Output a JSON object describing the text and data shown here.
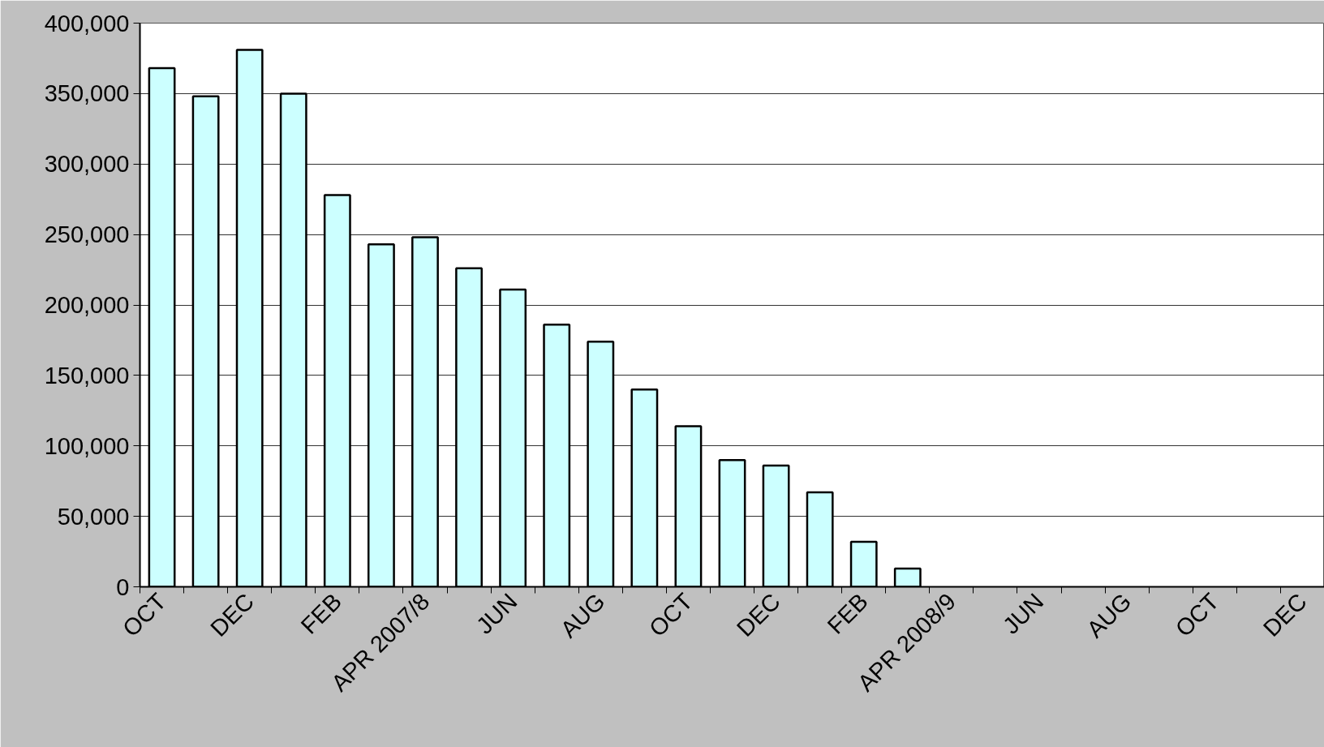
{
  "chart_data": {
    "type": "bar",
    "categories": [
      "OCT",
      null,
      "DEC",
      null,
      "FEB",
      null,
      "APR 2007/8",
      null,
      "JUN",
      null,
      "AUG",
      null,
      "OCT",
      null,
      "DEC",
      null,
      "FEB",
      null,
      "APR 2008/9",
      null,
      "JUN",
      null,
      "AUG",
      null,
      "OCT",
      null,
      "DEC"
    ],
    "values": [
      368000,
      348000,
      381000,
      350000,
      278000,
      243000,
      248000,
      226000,
      211000,
      186000,
      174000,
      140000,
      114000,
      90000,
      86000,
      67000,
      32000,
      13000,
      null,
      null,
      null,
      null,
      null,
      null,
      null,
      null,
      null
    ],
    "color": "#ccffff",
    "ylim": [
      0,
      400000
    ],
    "yticks": [
      {
        "value": 0,
        "label": "0"
      },
      {
        "value": 50000,
        "label": "50,000"
      },
      {
        "value": 100000,
        "label": "100,000"
      },
      {
        "value": 150000,
        "label": "150,000"
      },
      {
        "value": 200000,
        "label": "200,000"
      },
      {
        "value": 250000,
        "label": "250,000"
      },
      {
        "value": 300000,
        "label": "300,000"
      },
      {
        "value": 350000,
        "label": "350,000"
      },
      {
        "value": 400000,
        "label": "400,000"
      }
    ],
    "grid": "y"
  }
}
